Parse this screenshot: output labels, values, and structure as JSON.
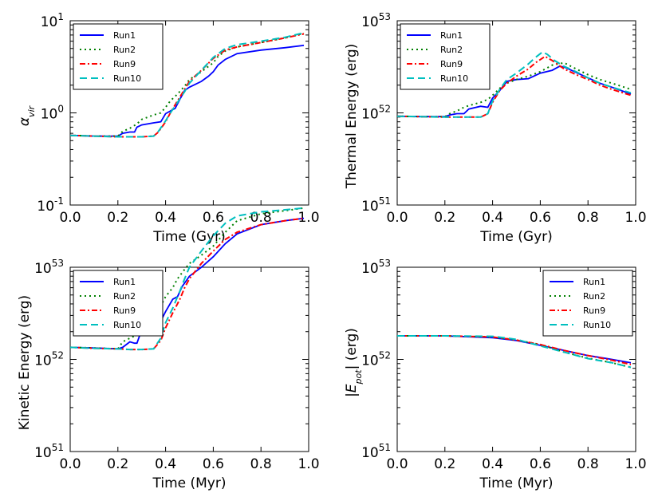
{
  "chart_data": [
    {
      "type": "line",
      "ylabel": "α_vir",
      "xlabel": "Time (Gyr)",
      "xlim": [
        0.0,
        1.0
      ],
      "ylim_log10": [
        -1,
        1
      ],
      "yscale": "log",
      "xticks": [
        "0.0",
        "0.2",
        "0.4",
        "0.6",
        "0.8",
        "1.0"
      ],
      "yticks": [
        {
          "base": "10",
          "exp": "-1"
        },
        {
          "base": "10",
          "exp": "0"
        },
        {
          "base": "10",
          "exp": "1"
        }
      ],
      "legend_loc": "top-left",
      "series": [
        {
          "name": "Run1",
          "color": "#0000ff",
          "style": "solid",
          "x": [
            0,
            0.1,
            0.2,
            0.22,
            0.25,
            0.27,
            0.28,
            0.3,
            0.35,
            0.38,
            0.4,
            0.42,
            0.44,
            0.46,
            0.48,
            0.5,
            0.55,
            0.58,
            0.6,
            0.62,
            0.65,
            0.7,
            0.8,
            0.9,
            0.98
          ],
          "y": [
            0.57,
            0.56,
            0.56,
            0.6,
            0.62,
            0.62,
            0.7,
            0.74,
            0.78,
            0.8,
            0.98,
            1.05,
            1.12,
            1.4,
            1.75,
            1.9,
            2.2,
            2.5,
            2.8,
            3.3,
            3.8,
            4.4,
            4.8,
            5.1,
            5.4
          ]
        },
        {
          "name": "Run2",
          "color": "#008000",
          "style": "dotted",
          "x": [
            0,
            0.1,
            0.2,
            0.22,
            0.25,
            0.28,
            0.3,
            0.35,
            0.38,
            0.4,
            0.42,
            0.45,
            0.48,
            0.5,
            0.55,
            0.6,
            0.62,
            0.65,
            0.7,
            0.8,
            0.9,
            0.98
          ],
          "y": [
            0.57,
            0.56,
            0.56,
            0.63,
            0.68,
            0.76,
            0.85,
            0.95,
            1.0,
            1.15,
            1.35,
            1.6,
            1.95,
            2.3,
            2.8,
            3.5,
            4.1,
            4.7,
            5.2,
            5.8,
            6.5,
            7.3
          ]
        },
        {
          "name": "Run9",
          "color": "#ff0000",
          "style": "dashdot",
          "x": [
            0,
            0.1,
            0.2,
            0.25,
            0.3,
            0.35,
            0.37,
            0.4,
            0.42,
            0.45,
            0.48,
            0.5,
            0.55,
            0.6,
            0.65,
            0.7,
            0.8,
            0.9,
            0.98
          ],
          "y": [
            0.57,
            0.56,
            0.55,
            0.55,
            0.55,
            0.56,
            0.62,
            0.8,
            1.0,
            1.35,
            1.8,
            2.2,
            2.9,
            3.9,
            4.8,
            5.2,
            5.8,
            6.5,
            7.2
          ]
        },
        {
          "name": "Run10",
          "color": "#00bfbf",
          "style": "dashed",
          "x": [
            0,
            0.1,
            0.2,
            0.25,
            0.3,
            0.35,
            0.37,
            0.4,
            0.42,
            0.45,
            0.48,
            0.5,
            0.55,
            0.6,
            0.65,
            0.7,
            0.8,
            0.9,
            0.98
          ],
          "y": [
            0.57,
            0.56,
            0.55,
            0.55,
            0.55,
            0.56,
            0.63,
            0.82,
            1.0,
            1.3,
            1.7,
            2.1,
            2.9,
            4.0,
            5.0,
            5.5,
            6.0,
            6.6,
            7.4
          ]
        }
      ]
    },
    {
      "type": "line",
      "ylabel": "Thermal Energy (erg)",
      "xlabel": "Time (Gyr)",
      "xlim": [
        0.0,
        1.0
      ],
      "ylim_log10": [
        51,
        53
      ],
      "yscale": "log",
      "xticks": [
        "0.0",
        "0.2",
        "0.4",
        "0.6",
        "0.8",
        "1.0"
      ],
      "yticks": [
        {
          "base": "10",
          "exp": "51"
        },
        {
          "base": "10",
          "exp": "52"
        },
        {
          "base": "10",
          "exp": "53"
        }
      ],
      "legend_loc": "top-left",
      "series": [
        {
          "name": "Run1",
          "color": "#0000ff",
          "style": "solid",
          "x": [
            0,
            0.1,
            0.2,
            0.22,
            0.25,
            0.28,
            0.3,
            0.35,
            0.38,
            0.4,
            0.43,
            0.46,
            0.5,
            0.55,
            0.6,
            0.65,
            0.68,
            0.7,
            0.75,
            0.8,
            0.85,
            0.9,
            0.98
          ],
          "y": [
            0.92,
            0.91,
            0.91,
            0.95,
            0.98,
            0.98,
            1.1,
            1.18,
            1.15,
            1.45,
            1.75,
            2.2,
            2.3,
            2.35,
            2.7,
            2.9,
            3.2,
            3.15,
            2.75,
            2.4,
            2.1,
            1.9,
            1.6
          ]
        },
        {
          "name": "Run2",
          "color": "#008000",
          "style": "dotted",
          "x": [
            0,
            0.1,
            0.2,
            0.22,
            0.25,
            0.28,
            0.3,
            0.35,
            0.38,
            0.4,
            0.43,
            0.46,
            0.5,
            0.55,
            0.6,
            0.65,
            0.7,
            0.75,
            0.8,
            0.85,
            0.9,
            0.98
          ],
          "y": [
            0.92,
            0.91,
            0.91,
            0.98,
            1.05,
            1.15,
            1.2,
            1.3,
            1.4,
            1.55,
            1.85,
            2.1,
            2.3,
            2.5,
            2.8,
            3.3,
            3.5,
            3.0,
            2.6,
            2.3,
            2.1,
            1.8
          ]
        },
        {
          "name": "Run9",
          "color": "#ff0000",
          "style": "dashdot",
          "x": [
            0,
            0.1,
            0.2,
            0.25,
            0.3,
            0.35,
            0.38,
            0.4,
            0.43,
            0.46,
            0.5,
            0.55,
            0.58,
            0.62,
            0.65,
            0.7,
            0.75,
            0.8,
            0.85,
            0.9,
            0.98
          ],
          "y": [
            0.92,
            0.91,
            0.9,
            0.9,
            0.9,
            0.9,
            0.98,
            1.3,
            1.75,
            2.1,
            2.5,
            3.0,
            3.5,
            4.1,
            3.7,
            3.0,
            2.6,
            2.3,
            2.0,
            1.8,
            1.55
          ]
        },
        {
          "name": "Run10",
          "color": "#00bfbf",
          "style": "dashed",
          "x": [
            0,
            0.1,
            0.2,
            0.25,
            0.3,
            0.35,
            0.38,
            0.4,
            0.43,
            0.46,
            0.5,
            0.55,
            0.58,
            0.61,
            0.63,
            0.66,
            0.7,
            0.75,
            0.8,
            0.85,
            0.9,
            0.98
          ],
          "y": [
            0.92,
            0.91,
            0.9,
            0.9,
            0.9,
            0.9,
            0.98,
            1.35,
            1.8,
            2.3,
            2.7,
            3.4,
            4.0,
            4.6,
            4.3,
            3.7,
            3.2,
            2.8,
            2.4,
            2.1,
            1.9,
            1.65
          ]
        }
      ]
    },
    {
      "type": "line",
      "ylabel": "Kinetic Energy (erg)",
      "xlabel": "Time (Myr)",
      "xlim": [
        0.0,
        1.0
      ],
      "ylim_log10": [
        51,
        53
      ],
      "yscale": "log",
      "xticks": [
        "0.0",
        "0.2",
        "0.4",
        "0.6",
        "0.8",
        "1.0"
      ],
      "yticks": [
        {
          "base": "10",
          "exp": "51"
        },
        {
          "base": "10",
          "exp": "52"
        },
        {
          "base": "10",
          "exp": "53"
        }
      ],
      "legend_loc": "top-left",
      "series": [
        {
          "name": "Run1",
          "color": "#0000ff",
          "style": "solid",
          "x": [
            0,
            0.1,
            0.2,
            0.22,
            0.25,
            0.27,
            0.28,
            0.3,
            0.35,
            0.38,
            0.4,
            0.43,
            0.45,
            0.47,
            0.5,
            0.55,
            0.6,
            0.65,
            0.7,
            0.8,
            0.9,
            0.98
          ],
          "y": [
            1.35,
            1.33,
            1.3,
            1.35,
            1.55,
            1.5,
            1.5,
            2.1,
            2.4,
            2.6,
            3.3,
            4.5,
            4.8,
            6.2,
            8.0,
            10.0,
            13.0,
            18.0,
            23.0,
            29.0,
            32.0,
            34.0
          ]
        },
        {
          "name": "Run2",
          "color": "#008000",
          "style": "dotted",
          "x": [
            0,
            0.1,
            0.2,
            0.22,
            0.25,
            0.28,
            0.3,
            0.35,
            0.38,
            0.4,
            0.43,
            0.45,
            0.48,
            0.5,
            0.55,
            0.6,
            0.65,
            0.7,
            0.8,
            0.9,
            0.98
          ],
          "y": [
            1.35,
            1.33,
            1.3,
            1.55,
            1.7,
            1.85,
            2.6,
            3.2,
            3.8,
            4.8,
            6.0,
            7.5,
            9.5,
            11.0,
            13.5,
            17.0,
            24.0,
            32.0,
            38.0,
            41.0,
            44.0
          ]
        },
        {
          "name": "Run9",
          "color": "#ff0000",
          "style": "dashdot",
          "x": [
            0,
            0.1,
            0.2,
            0.25,
            0.3,
            0.35,
            0.38,
            0.4,
            0.43,
            0.46,
            0.48,
            0.5,
            0.55,
            0.6,
            0.65,
            0.7,
            0.8,
            0.9,
            0.98
          ],
          "y": [
            1.35,
            1.32,
            1.3,
            1.28,
            1.28,
            1.3,
            1.6,
            2.2,
            3.2,
            4.5,
            6.0,
            7.5,
            11.0,
            15.0,
            20.0,
            24.0,
            29.0,
            32.0,
            34.0
          ]
        },
        {
          "name": "Run10",
          "color": "#00bfbf",
          "style": "dashed",
          "x": [
            0,
            0.1,
            0.2,
            0.25,
            0.3,
            0.35,
            0.38,
            0.4,
            0.43,
            0.46,
            0.48,
            0.5,
            0.55,
            0.6,
            0.65,
            0.7,
            0.8,
            0.9,
            0.98
          ],
          "y": [
            1.35,
            1.32,
            1.3,
            1.28,
            1.28,
            1.3,
            1.7,
            2.5,
            3.6,
            5.5,
            7.5,
            10.0,
            15.0,
            22.0,
            30.0,
            36.0,
            40.0,
            42.0,
            44.0
          ]
        }
      ]
    },
    {
      "type": "line",
      "ylabel": "|E_pot| (erg)",
      "xlabel": "Time (Myr)",
      "xlim": [
        0.0,
        1.0
      ],
      "ylim_log10": [
        51,
        53
      ],
      "yscale": "log",
      "xticks": [
        "0.0",
        "0.2",
        "0.4",
        "0.6",
        "0.8",
        "1.0"
      ],
      "yticks": [
        {
          "base": "10",
          "exp": "51"
        },
        {
          "base": "10",
          "exp": "52"
        },
        {
          "base": "10",
          "exp": "53"
        }
      ],
      "legend_loc": "top-right",
      "series": [
        {
          "name": "Run1",
          "color": "#0000ff",
          "style": "solid",
          "x": [
            0,
            0.2,
            0.4,
            0.5,
            0.6,
            0.7,
            0.8,
            0.9,
            0.98
          ],
          "y": [
            1.8,
            1.8,
            1.72,
            1.6,
            1.42,
            1.25,
            1.1,
            1.0,
            0.92
          ]
        },
        {
          "name": "Run2",
          "color": "#008000",
          "style": "dotted",
          "x": [
            0,
            0.2,
            0.4,
            0.5,
            0.6,
            0.7,
            0.8,
            0.9,
            0.98
          ],
          "y": [
            1.8,
            1.8,
            1.75,
            1.62,
            1.45,
            1.2,
            1.03,
            0.92,
            0.82
          ]
        },
        {
          "name": "Run9",
          "color": "#ff0000",
          "style": "dashdot",
          "x": [
            0,
            0.2,
            0.4,
            0.5,
            0.6,
            0.7,
            0.8,
            0.9,
            0.98
          ],
          "y": [
            1.8,
            1.8,
            1.75,
            1.62,
            1.45,
            1.25,
            1.1,
            0.98,
            0.88
          ]
        },
        {
          "name": "Run10",
          "color": "#00bfbf",
          "style": "dashed",
          "x": [
            0,
            0.2,
            0.4,
            0.5,
            0.6,
            0.7,
            0.8,
            0.9,
            0.98
          ],
          "y": [
            1.8,
            1.8,
            1.78,
            1.65,
            1.4,
            1.2,
            1.02,
            0.92,
            0.82
          ]
        }
      ]
    }
  ]
}
